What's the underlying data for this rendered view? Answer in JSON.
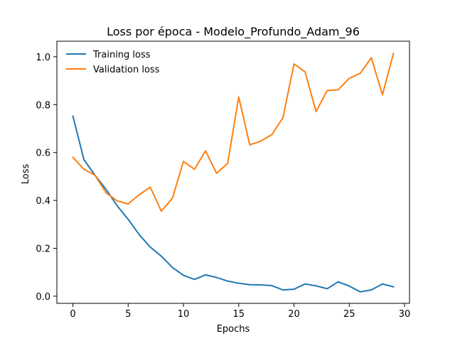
{
  "chart_data": {
    "type": "line",
    "title": "Loss por época - Modelo_Profundo_Adam_96",
    "xlabel": "Epochs",
    "ylabel": "Loss",
    "xlim": [
      -1.45,
      30.45
    ],
    "ylim": [
      -0.03,
      1.065
    ],
    "xticks": [
      0,
      5,
      10,
      15,
      20,
      25,
      30
    ],
    "yticks": [
      0.0,
      0.2,
      0.4,
      0.6,
      0.8,
      1.0
    ],
    "xtick_labels": [
      "0",
      "5",
      "10",
      "15",
      "20",
      "25",
      "30"
    ],
    "ytick_labels": [
      "0.0",
      "0.2",
      "0.4",
      "0.6",
      "0.8",
      "1.0"
    ],
    "grid": false,
    "legend_position": "upper-left",
    "x": [
      0,
      1,
      2,
      3,
      4,
      5,
      6,
      7,
      8,
      9,
      10,
      11,
      12,
      13,
      14,
      15,
      16,
      17,
      18,
      19,
      20,
      21,
      22,
      23,
      24,
      25,
      26,
      27,
      28,
      29
    ],
    "series": [
      {
        "name": "Training loss",
        "color": "#1f77b4",
        "values": [
          0.752,
          0.57,
          0.505,
          0.446,
          0.378,
          0.321,
          0.257,
          0.205,
          0.167,
          0.12,
          0.087,
          0.07,
          0.089,
          0.078,
          0.063,
          0.054,
          0.048,
          0.047,
          0.044,
          0.026,
          0.029,
          0.051,
          0.043,
          0.031,
          0.06,
          0.042,
          0.018,
          0.026,
          0.051,
          0.039
        ]
      },
      {
        "name": "Validation loss",
        "color": "#ff7f0e",
        "values": [
          0.58,
          0.53,
          0.505,
          0.432,
          0.398,
          0.385,
          0.424,
          0.455,
          0.355,
          0.409,
          0.563,
          0.53,
          0.607,
          0.513,
          0.555,
          0.832,
          0.632,
          0.648,
          0.675,
          0.745,
          0.97,
          0.937,
          0.771,
          0.859,
          0.862,
          0.91,
          0.931,
          0.996,
          0.841,
          1.014
        ]
      }
    ]
  }
}
